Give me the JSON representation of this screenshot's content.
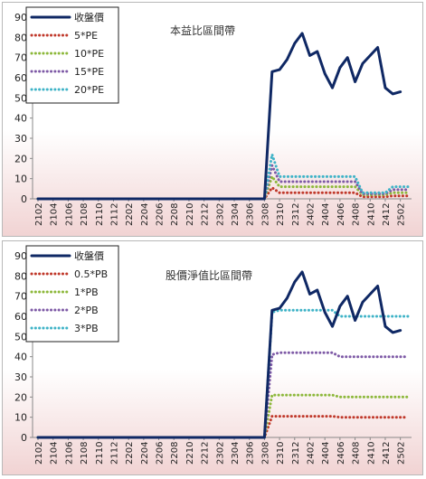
{
  "colors": {
    "price": "#0f2864",
    "series2": "#c0392b",
    "series3": "#8db83b",
    "series4": "#7e5aa6",
    "series5": "#3fb3c7"
  },
  "x_tick_labels": [
    "2102",
    "2104",
    "2106",
    "2108",
    "2110",
    "2112",
    "2202",
    "2204",
    "2206",
    "2208",
    "2210",
    "2212",
    "2302",
    "2304",
    "2306",
    "2308",
    "2310",
    "2312",
    "2402",
    "2404",
    "2406",
    "2408",
    "2410",
    "2412",
    "2502"
  ],
  "chart_data": [
    {
      "type": "line",
      "title": "本益比區間帶",
      "ylim": [
        0,
        90
      ],
      "yticks": [
        0,
        10,
        20,
        30,
        40,
        50,
        60,
        70,
        80,
        90
      ],
      "grid": false,
      "legend_position": "top-left",
      "x": [
        "2102",
        "2103",
        "2104",
        "2105",
        "2106",
        "2107",
        "2108",
        "2109",
        "2110",
        "2111",
        "2112",
        "2201",
        "2202",
        "2203",
        "2204",
        "2205",
        "2206",
        "2207",
        "2208",
        "2209",
        "2210",
        "2211",
        "2212",
        "2301",
        "2302",
        "2303",
        "2304",
        "2305",
        "2306",
        "2307",
        "2308",
        "2309",
        "2310",
        "2311",
        "2312",
        "2401",
        "2402",
        "2403",
        "2404",
        "2405",
        "2406",
        "2407",
        "2408",
        "2409",
        "2410",
        "2411",
        "2412",
        "2501",
        "2502",
        "2503"
      ],
      "series": [
        {
          "name": "收盤價",
          "values": [
            0,
            0,
            0,
            0,
            0,
            0,
            0,
            0,
            0,
            0,
            0,
            0,
            0,
            0,
            0,
            0,
            0,
            0,
            0,
            0,
            0,
            0,
            0,
            0,
            0,
            0,
            0,
            0,
            0,
            0,
            0,
            63,
            64,
            69,
            77,
            82,
            71,
            73,
            62,
            55,
            65,
            70,
            58,
            67,
            71,
            75,
            55,
            52,
            53,
            null
          ]
        },
        {
          "name": "5*PE",
          "values": [
            0,
            0,
            0,
            0,
            0,
            0,
            0,
            0,
            0,
            0,
            0,
            0,
            0,
            0,
            0,
            0,
            0,
            0,
            0,
            0,
            0,
            0,
            0,
            0,
            0,
            0,
            0,
            0,
            0,
            0,
            0,
            5.5,
            3,
            3,
            3,
            3,
            3,
            3,
            3,
            3,
            3,
            3,
            3,
            1,
            1,
            1,
            1,
            1.5,
            1.5,
            1.5
          ]
        },
        {
          "name": "10*PE",
          "values": [
            0,
            0,
            0,
            0,
            0,
            0,
            0,
            0,
            0,
            0,
            0,
            0,
            0,
            0,
            0,
            0,
            0,
            0,
            0,
            0,
            0,
            0,
            0,
            0,
            0,
            0,
            0,
            0,
            0,
            0,
            0,
            11,
            6,
            6,
            6,
            6,
            6,
            6,
            6,
            6,
            6,
            6,
            6,
            2,
            2,
            2,
            2,
            3,
            3,
            3
          ]
        },
        {
          "name": "15*PE",
          "values": [
            0,
            0,
            0,
            0,
            0,
            0,
            0,
            0,
            0,
            0,
            0,
            0,
            0,
            0,
            0,
            0,
            0,
            0,
            0,
            0,
            0,
            0,
            0,
            0,
            0,
            0,
            0,
            0,
            0,
            0,
            0,
            16.5,
            8.5,
            8.5,
            8.5,
            8.5,
            8.5,
            8.5,
            8.5,
            8.5,
            8.5,
            8.5,
            8.5,
            2.5,
            2.5,
            2.5,
            2.5,
            4.5,
            4.5,
            4.5
          ]
        },
        {
          "name": "20*PE",
          "values": [
            0,
            0,
            0,
            0,
            0,
            0,
            0,
            0,
            0,
            0,
            0,
            0,
            0,
            0,
            0,
            0,
            0,
            0,
            0,
            0,
            0,
            0,
            0,
            0,
            0,
            0,
            0,
            0,
            0,
            0,
            0,
            22,
            11,
            11,
            11,
            11,
            11,
            11,
            11,
            11,
            11,
            11,
            11,
            3,
            3,
            3,
            3,
            6,
            6,
            6
          ]
        }
      ]
    },
    {
      "type": "line",
      "title": "股價淨值比區間帶",
      "ylim": [
        0,
        90
      ],
      "yticks": [
        0,
        10,
        20,
        30,
        40,
        50,
        60,
        70,
        80,
        90
      ],
      "grid": false,
      "legend_position": "top-left",
      "x": [
        "2102",
        "2103",
        "2104",
        "2105",
        "2106",
        "2107",
        "2108",
        "2109",
        "2110",
        "2111",
        "2112",
        "2201",
        "2202",
        "2203",
        "2204",
        "2205",
        "2206",
        "2207",
        "2208",
        "2209",
        "2210",
        "2211",
        "2212",
        "2301",
        "2302",
        "2303",
        "2304",
        "2305",
        "2306",
        "2307",
        "2308",
        "2309",
        "2310",
        "2311",
        "2312",
        "2401",
        "2402",
        "2403",
        "2404",
        "2405",
        "2406",
        "2407",
        "2408",
        "2409",
        "2410",
        "2411",
        "2412",
        "2501",
        "2502",
        "2503"
      ],
      "series": [
        {
          "name": "收盤價",
          "values": [
            0,
            0,
            0,
            0,
            0,
            0,
            0,
            0,
            0,
            0,
            0,
            0,
            0,
            0,
            0,
            0,
            0,
            0,
            0,
            0,
            0,
            0,
            0,
            0,
            0,
            0,
            0,
            0,
            0,
            0,
            0,
            63,
            64,
            69,
            77,
            82,
            71,
            73,
            62,
            55,
            65,
            70,
            58,
            67,
            71,
            75,
            55,
            52,
            53,
            null
          ]
        },
        {
          "name": "0.5*PB",
          "values": [
            0,
            0,
            0,
            0,
            0,
            0,
            0,
            0,
            0,
            0,
            0,
            0,
            0,
            0,
            0,
            0,
            0,
            0,
            0,
            0,
            0,
            0,
            0,
            0,
            0,
            0,
            0,
            0,
            0,
            0,
            0,
            10.5,
            10.5,
            10.5,
            10.5,
            10.5,
            10.5,
            10.5,
            10.5,
            10.5,
            10,
            10,
            10,
            10,
            10,
            10,
            10,
            10,
            10,
            10
          ]
        },
        {
          "name": "1*PB",
          "values": [
            0,
            0,
            0,
            0,
            0,
            0,
            0,
            0,
            0,
            0,
            0,
            0,
            0,
            0,
            0,
            0,
            0,
            0,
            0,
            0,
            0,
            0,
            0,
            0,
            0,
            0,
            0,
            0,
            0,
            0,
            0,
            21,
            21,
            21,
            21,
            21,
            21,
            21,
            21,
            21,
            20,
            20,
            20,
            20,
            20,
            20,
            20,
            20,
            20,
            20
          ]
        },
        {
          "name": "2*PB",
          "values": [
            0,
            0,
            0,
            0,
            0,
            0,
            0,
            0,
            0,
            0,
            0,
            0,
            0,
            0,
            0,
            0,
            0,
            0,
            0,
            0,
            0,
            0,
            0,
            0,
            0,
            0,
            0,
            0,
            0,
            0,
            0,
            41,
            42,
            42,
            42,
            42,
            42,
            42,
            42,
            42,
            40,
            40,
            40,
            40,
            40,
            40,
            40,
            40,
            40,
            40
          ]
        },
        {
          "name": "3*PB",
          "values": [
            0,
            0,
            0,
            0,
            0,
            0,
            0,
            0,
            0,
            0,
            0,
            0,
            0,
            0,
            0,
            0,
            0,
            0,
            0,
            0,
            0,
            0,
            0,
            0,
            0,
            0,
            0,
            0,
            0,
            0,
            0,
            62,
            63,
            63,
            63,
            63,
            63,
            63,
            63,
            63,
            60,
            60,
            60,
            60,
            60,
            60,
            60,
            60,
            60,
            60
          ]
        }
      ]
    }
  ]
}
